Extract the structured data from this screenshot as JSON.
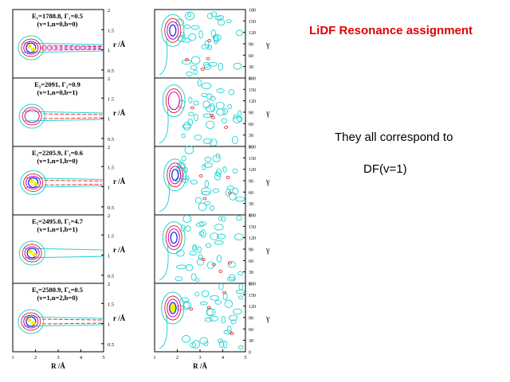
{
  "slide": {
    "title": "LiDF Resonance assignment",
    "text_line1": "They all correspond to",
    "text_line2": "DF(v=1)",
    "title_color": "#e00000"
  },
  "chart_data": {
    "type": "contour",
    "colors": {
      "outer": "#22d3d3",
      "mid": "#e53030",
      "inner": "#c000c0",
      "core": "#1818d8",
      "peak": "#f0f000"
    },
    "left_axes": {
      "xlabel": "R /Å",
      "ylabel": "r /Å",
      "xlim": [
        1,
        5
      ],
      "ylim": [
        0.3,
        2
      ],
      "x_ticks": [
        "1",
        "2",
        "3",
        "4",
        "5"
      ],
      "y_ticks": [
        "0.5",
        "1",
        "1.5",
        "2"
      ]
    },
    "right_axes": {
      "xlabel": "R /Å",
      "ylabel": "γ",
      "xlim": [
        1,
        5
      ],
      "ylim": [
        0,
        180
      ],
      "x_ticks": [
        "1",
        "2",
        "3",
        "4",
        "5"
      ],
      "y_ticks": [
        "0",
        "30",
        "60",
        "90",
        "120",
        "150",
        "180"
      ]
    },
    "panels": [
      {
        "line1": "E₁=1788.8, Γ₁=0.5",
        "line2": "(v=1,n=0,b=0)",
        "peak_R": 1.8,
        "peak_r": 1.05,
        "peak_gamma": 125,
        "levels": 4
      },
      {
        "line1": "E₂=2091, Γ₂=0.9",
        "line2": "(v=1,n=0,b=1)",
        "peak_R": 1.85,
        "peak_r": 1.05,
        "peak_gamma": 120,
        "levels": 3
      },
      {
        "line1": "E₃=2205.9, Γ₃=0.6",
        "line2": "(v=1,n=1,b=0)",
        "peak_R": 1.9,
        "peak_r": 1.1,
        "peak_gamma": 105,
        "levels": 4
      },
      {
        "line1": "E₅=2495.0, Γ₅=4.7",
        "line2": "(v=1,n=1,b=1)",
        "peak_R": 1.85,
        "peak_r": 1.05,
        "peak_gamma": 120,
        "levels": 4
      },
      {
        "line1": "E₆=2580.9, Γ₆=0.5",
        "line2": "(v=1,n=2,b=0)",
        "peak_R": 1.8,
        "peak_r": 1.05,
        "peak_gamma": 115,
        "levels": 5
      }
    ]
  }
}
